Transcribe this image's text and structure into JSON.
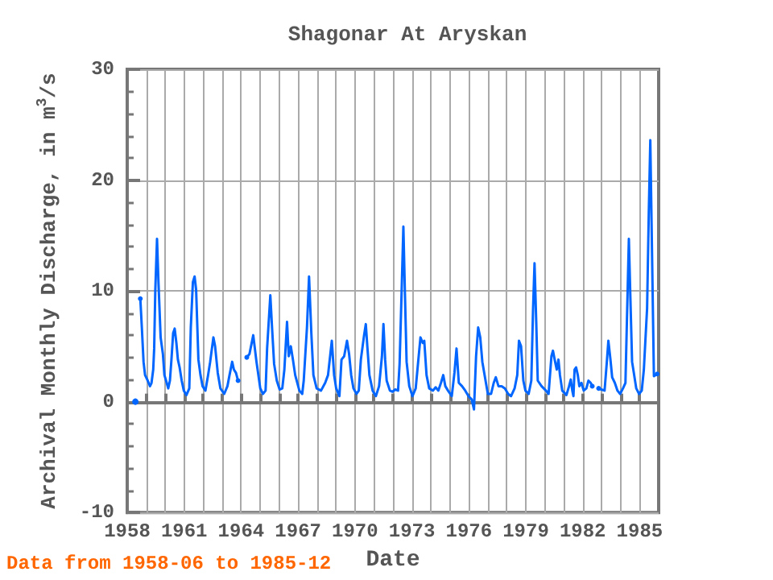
{
  "chart_data": {
    "type": "line",
    "title": "Shagonar At Aryskan",
    "xlabel": "Date",
    "ylabel": "Archival Monthly Discharge, in m$^{3}$/s",
    "annotations": [
      "Data from 1958-06 to 1985-12"
    ],
    "grid": true,
    "xlim": [
      1958,
      1986
    ],
    "xticks": [
      1958,
      {
        "value": 1959,
        "label": null
      },
      {
        "value": 1960,
        "label": null
      },
      1961,
      {
        "value": 1962,
        "label": null
      },
      {
        "value": 1963,
        "label": null
      },
      1964,
      {
        "value": 1965,
        "label": null
      },
      {
        "value": 1966,
        "label": null
      },
      1967,
      {
        "value": 1968,
        "label": null
      },
      {
        "value": 1969,
        "label": null
      },
      1970,
      {
        "value": 1971,
        "label": null
      },
      {
        "value": 1972,
        "label": null
      },
      1973,
      {
        "value": 1974,
        "label": null
      },
      {
        "value": 1975,
        "label": null
      },
      1976,
      {
        "value": 1977,
        "label": null
      },
      {
        "value": 1978,
        "label": null
      },
      1979,
      {
        "value": 1980,
        "label": null
      },
      {
        "value": 1981,
        "label": null
      },
      1982,
      {
        "value": 1983,
        "label": null
      },
      {
        "value": 1984,
        "label": null
      },
      1985
    ],
    "ylim": [
      -10,
      30
    ],
    "yticks": [
      -10,
      0,
      10,
      20,
      30
    ],
    "series": [
      {
        "color": "#0066ff",
        "x": [
          1958.43,
          1958.55,
          1958.69,
          1958.77,
          1958.86,
          1958.94,
          1959.08,
          1959.2,
          1959.28,
          1959.37,
          1959.42,
          1959.48,
          1959.57,
          1959.65,
          1959.76,
          1959.88,
          1959.96,
          1960.08,
          1960.16,
          1960.25,
          1960.33,
          1960.42,
          1960.5,
          1960.59,
          1960.67,
          1960.76,
          1960.87,
          1960.98,
          1961.12,
          1961.27,
          1961.35,
          1961.46,
          1961.55,
          1961.63,
          1961.75,
          1961.86,
          1961.97,
          1962.12,
          1962.26,
          1962.37,
          1962.54,
          1962.63,
          1962.77,
          1962.91,
          1963.11,
          1963.28,
          1963.39,
          1963.53,
          1963.62,
          1963.73,
          1963.84,
          1964.05,
          1964.3,
          1964.44,
          1964.64,
          1964.81,
          1965.01,
          1965.15,
          1965.29,
          1965.37,
          1965.54,
          1965.63,
          1965.74,
          1965.88,
          1966.03,
          1966.17,
          1966.28,
          1966.42,
          1966.51,
          1966.62,
          1966.73,
          1966.85,
          1967.07,
          1967.22,
          1967.3,
          1967.47,
          1967.58,
          1967.7,
          1967.81,
          1967.98,
          1968.21,
          1968.43,
          1968.58,
          1968.78,
          1968.9,
          1969.01,
          1969.18,
          1969.29,
          1969.43,
          1969.58,
          1969.69,
          1969.8,
          1969.92,
          1970.08,
          1970.2,
          1970.31,
          1970.48,
          1970.57,
          1970.65,
          1970.76,
          1970.93,
          1971.1,
          1971.27,
          1971.42,
          1971.5,
          1971.59,
          1971.67,
          1971.84,
          1971.98,
          1972.12,
          1972.27,
          1972.35,
          1972.46,
          1972.55,
          1972.63,
          1972.72,
          1972.86,
          1973.03,
          1973.2,
          1973.34,
          1973.45,
          1973.57,
          1973.65,
          1973.77,
          1973.91,
          1974.11,
          1974.25,
          1974.39,
          1974.53,
          1974.65,
          1974.76,
          1974.9,
          1975.1,
          1975.24,
          1975.35,
          1975.47,
          1975.64,
          1975.81,
          1975.98,
          1976.15,
          1976.27,
          1976.38,
          1976.49,
          1976.6,
          1976.71,
          1976.83,
          1977.0,
          1977.17,
          1977.31,
          1977.42,
          1977.56,
          1977.73,
          1977.9,
          1978.07,
          1978.22,
          1978.41,
          1978.55,
          1978.64,
          1978.75,
          1978.87,
          1978.98,
          1979.15,
          1979.29,
          1979.38,
          1979.46,
          1979.55,
          1979.63,
          1979.83,
          1980.06,
          1980.2,
          1980.35,
          1980.43,
          1980.52,
          1980.63,
          1980.72,
          1980.8,
          1980.92,
          1981.14,
          1981.28,
          1981.37,
          1981.45,
          1981.51,
          1981.57,
          1981.65,
          1981.74,
          1981.82,
          1981.93,
          1982.05,
          1982.19,
          1982.3,
          1982.42,
          1982.5,
          1982.67,
          1982.84,
          1982.98,
          1983.15,
          1983.27,
          1983.35,
          1983.46,
          1983.55,
          1983.69,
          1983.83,
          1983.97,
          1984.12,
          1984.25,
          1984.34,
          1984.43,
          1984.51,
          1984.6,
          1984.71,
          1984.82,
          1984.97,
          1985.11,
          1985.22,
          1985.3,
          1985.39,
          1985.48,
          1985.56,
          1985.75,
          1985.92
        ],
        "values": [
          0,
          null,
          9.3,
          6.7,
          3.6,
          2.4,
          1.9,
          1.4,
          1.7,
          2.9,
          4.8,
          10.1,
          14.7,
          10.6,
          5.8,
          4.3,
          2.4,
          1.7,
          1.2,
          1.9,
          3.8,
          6.2,
          6.6,
          5.3,
          3.8,
          3.1,
          1.9,
          1.0,
          0.6,
          1.2,
          6.7,
          10.8,
          11.3,
          10.1,
          3.8,
          2.4,
          1.4,
          1.0,
          2.4,
          3.6,
          5.8,
          5.0,
          2.6,
          1.2,
          0.7,
          1.4,
          2.4,
          3.6,
          2.9,
          2.6,
          1.9,
          null,
          4.0,
          4.3,
          6.0,
          3.6,
          1.2,
          0.7,
          1.0,
          4.8,
          9.6,
          6.7,
          3.4,
          1.9,
          1.1,
          1.2,
          2.9,
          7.2,
          4.1,
          5.0,
          3.8,
          2.4,
          1.0,
          0.7,
          1.9,
          6.7,
          11.3,
          6.2,
          2.4,
          1.2,
          1.0,
          1.7,
          2.4,
          5.5,
          2.4,
          1.2,
          0.5,
          3.8,
          4.1,
          5.5,
          4.3,
          2.4,
          1.2,
          0.7,
          1.0,
          3.8,
          6.0,
          7.0,
          5.0,
          2.4,
          1.0,
          0.5,
          1.4,
          4.1,
          7.0,
          3.8,
          1.9,
          1.0,
          0.9,
          1.1,
          1.0,
          3.4,
          10.1,
          15.8,
          9.9,
          3.6,
          1.4,
          0.5,
          1.2,
          3.8,
          5.8,
          5.3,
          5.5,
          2.4,
          1.2,
          1.0,
          1.3,
          1.0,
          1.7,
          2.4,
          1.4,
          1.0,
          0.5,
          2.6,
          4.8,
          1.7,
          1.4,
          1.0,
          0.5,
          0.2,
          -0.7,
          4.1,
          6.7,
          5.8,
          3.6,
          2.4,
          0.7,
          0.7,
          1.7,
          2.2,
          1.4,
          1.4,
          1.2,
          0.7,
          0.5,
          1.2,
          2.4,
          5.5,
          5.0,
          1.9,
          1.0,
          0.7,
          1.9,
          8.2,
          12.5,
          7.2,
          1.9,
          1.4,
          1.0,
          0.7,
          4.1,
          4.6,
          3.8,
          2.9,
          3.8,
          2.4,
          1.0,
          0.6,
          1.4,
          2.0,
          1.0,
          0.5,
          2.9,
          3.1,
          2.4,
          1.4,
          1.7,
          1.0,
          1.2,
          1.9,
          1.7,
          1.4,
          null,
          1.2,
          1.1,
          1.0,
          3.6,
          5.5,
          3.8,
          2.2,
          1.7,
          1.0,
          0.7,
          1.2,
          1.7,
          8.2,
          14.7,
          9.4,
          3.6,
          2.4,
          1.2,
          0.7,
          1.0,
          2.9,
          5.5,
          8.4,
          17.1,
          23.6,
          2.3,
          2.5
        ]
      }
    ]
  }
}
